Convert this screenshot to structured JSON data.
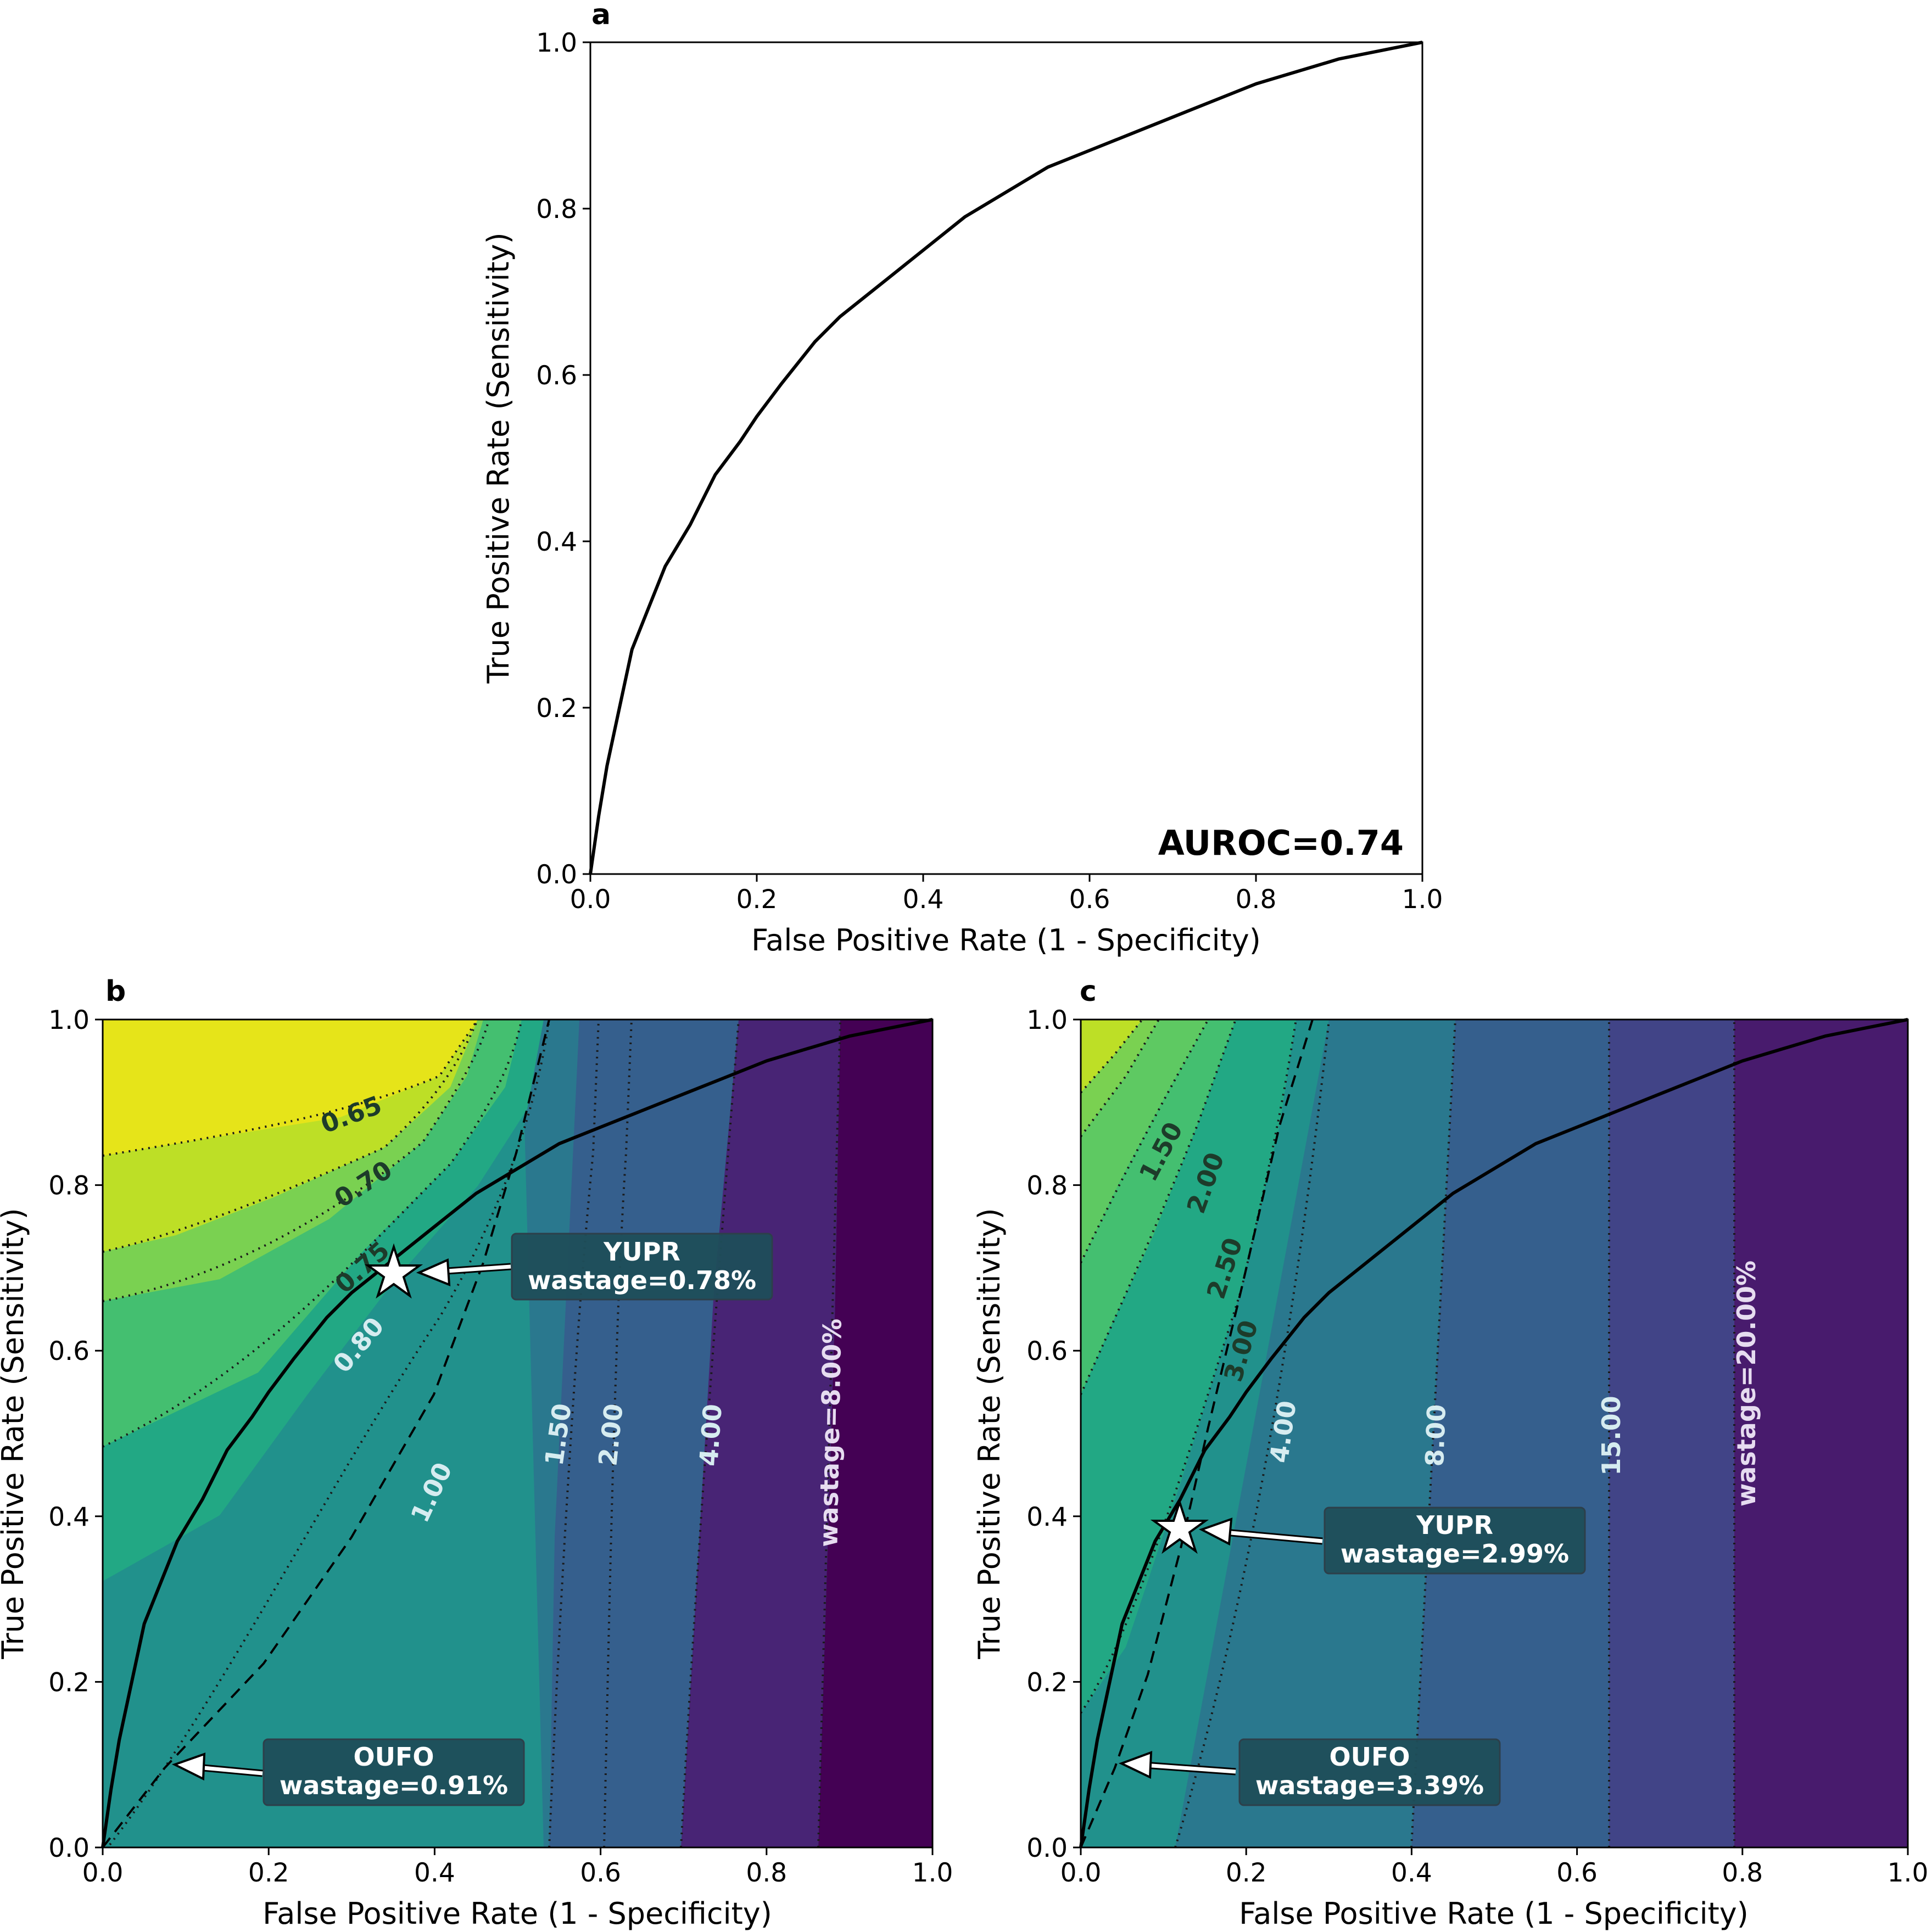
{
  "chart_data": [
    {
      "panel": "a",
      "type": "line",
      "xlabel": "False Positive Rate (1 - Specificity)",
      "ylabel": "True Positive Rate (Sensitivity)",
      "xlim": [
        0,
        1
      ],
      "ylim": [
        0,
        1
      ],
      "xticks": [
        "0.0",
        "0.2",
        "0.4",
        "0.6",
        "0.8",
        "1.0"
      ],
      "yticks": [
        "0.0",
        "0.2",
        "0.4",
        "0.6",
        "0.8",
        "1.0"
      ],
      "annotation": "AUROC=0.74",
      "series": [
        {
          "name": "ROC",
          "x": [
            0,
            0.01,
            0.02,
            0.035,
            0.05,
            0.07,
            0.09,
            0.12,
            0.15,
            0.18,
            0.2,
            0.23,
            0.27,
            0.3,
            0.35,
            0.4,
            0.45,
            0.5,
            0.55,
            0.6,
            0.65,
            0.7,
            0.75,
            0.8,
            0.85,
            0.9,
            0.95,
            1.0
          ],
          "y": [
            0,
            0.07,
            0.13,
            0.2,
            0.27,
            0.32,
            0.37,
            0.42,
            0.48,
            0.52,
            0.55,
            0.59,
            0.64,
            0.67,
            0.71,
            0.75,
            0.79,
            0.82,
            0.85,
            0.87,
            0.89,
            0.91,
            0.93,
            0.95,
            0.965,
            0.98,
            0.99,
            1.0
          ]
        }
      ]
    },
    {
      "panel": "b",
      "type": "line",
      "xlabel": "False Positive Rate (1 - Specificity)",
      "ylabel": "True Positive Rate (Sensitivity)",
      "xlim": [
        0,
        1
      ],
      "ylim": [
        0,
        1
      ],
      "xticks": [
        "0.0",
        "0.2",
        "0.4",
        "0.6",
        "0.8",
        "1.0"
      ],
      "yticks": [
        "0.0",
        "0.2",
        "0.4",
        "0.6",
        "0.8",
        "1.0"
      ],
      "contour_labels": [
        "0.65",
        "0.70",
        "0.75",
        "0.80",
        "1.00",
        "1.50",
        "2.00",
        "4.00",
        "wastage=8.00%"
      ],
      "annotations": [
        {
          "name": "YUPR",
          "text": [
            "YUPR",
            "wastage=0.78%"
          ],
          "x": 0.35,
          "y": 0.695
        },
        {
          "name": "OUFO",
          "text": [
            "OUFO",
            "wastage=0.91%"
          ],
          "x": 0.085,
          "y": 0.1
        }
      ]
    },
    {
      "panel": "c",
      "type": "line",
      "xlabel": "False Positive Rate (1 - Specificity)",
      "ylabel": "True Positive Rate (Sensitivity)",
      "xlim": [
        0,
        1
      ],
      "ylim": [
        0,
        1
      ],
      "xticks": [
        "0.0",
        "0.2",
        "0.4",
        "0.6",
        "0.8",
        "1.0"
      ],
      "yticks": [
        "0.0",
        "0.2",
        "0.4",
        "0.6",
        "0.8",
        "1.0"
      ],
      "contour_labels": [
        "1.50",
        "2.00",
        "2.50",
        "3.00",
        "4.00",
        "8.00",
        "15.00",
        "wastage=20.00%"
      ],
      "annotations": [
        {
          "name": "YUPR",
          "text": [
            "YUPR",
            "wastage=2.99%"
          ],
          "x": 0.12,
          "y": 0.39
        },
        {
          "name": "OUFO",
          "text": [
            "OUFO",
            "wastage=3.39%"
          ],
          "x": 0.05,
          "y": 0.1
        }
      ]
    }
  ],
  "colors": {
    "viridis": [
      "#440154",
      "#482475",
      "#414487",
      "#355f8d",
      "#2a788e",
      "#21918c",
      "#22a884",
      "#44bf70",
      "#7ad151",
      "#bddf26",
      "#fde725"
    ],
    "annotation_box": "#1f4e5a",
    "curve": "#000000"
  }
}
